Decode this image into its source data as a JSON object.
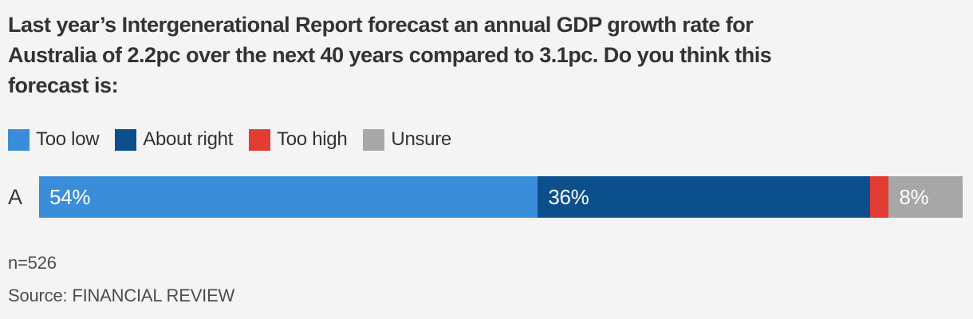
{
  "chart_data": {
    "type": "bar",
    "orientation": "horizontal",
    "stacked": true,
    "title": "Last year’s Intergenerational Report forecast an annual GDP growth rate for Australia of 2.2pc over the next 40 years compared to 3.1pc. Do you think this forecast is:",
    "title_lines": [
      "Last year’s Intergenerational Report forecast an annual GDP growth rate for",
      "Australia of 2.2pc over the next 40 years compared to 3.1pc. Do you think this",
      "forecast is:"
    ],
    "categories": [
      "A"
    ],
    "series": [
      {
        "name": "Too low",
        "values": [
          54
        ],
        "display_label": "54%",
        "color": "#3a8ed9"
      },
      {
        "name": "About right",
        "values": [
          36
        ],
        "display_label": "36%",
        "color": "#0c4f8d"
      },
      {
        "name": "Too high",
        "values": [
          2
        ],
        "display_label": "",
        "color": "#e23c33"
      },
      {
        "name": "Unsure",
        "values": [
          8
        ],
        "display_label": "8%",
        "color": "#a7a7a7"
      }
    ],
    "xlim": [
      0,
      100
    ],
    "legend_position": "top",
    "grid": false,
    "note": "n=526",
    "source": "Source: FINANCIAL REVIEW"
  },
  "colors": {
    "background": "#f4f4f4",
    "title_text": "#333333",
    "footer_text": "#4d4d4d",
    "bar_label_text": "#ffffff"
  }
}
